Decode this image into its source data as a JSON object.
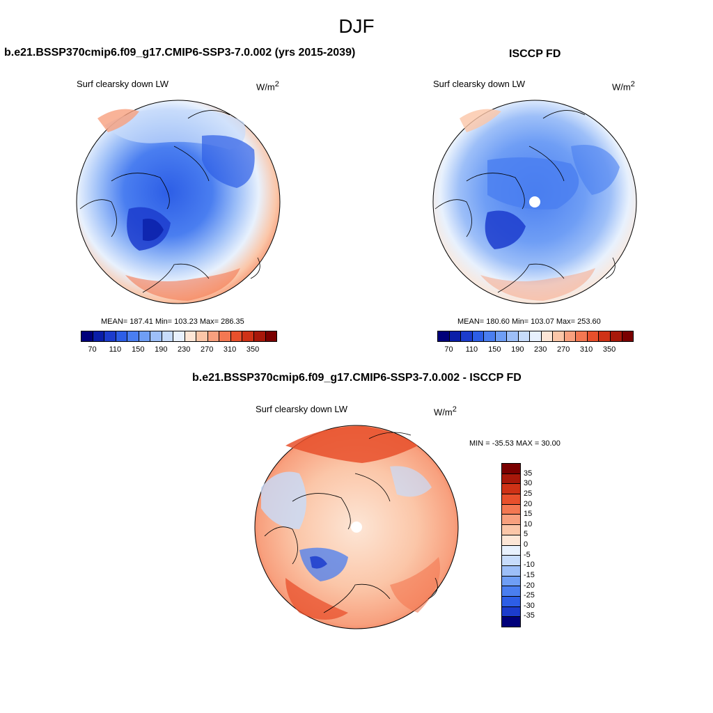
{
  "season": "DJF",
  "panels": [
    {
      "title": "b.e21.BSSP370cmip6.f09_g17.CMIP6-SSP3-7.0.002 (yrs 2015-2039)",
      "variable": "Surf clearsky down LW",
      "units_base": "W/m",
      "units_exp": "2",
      "stats": "MEAN= 187.41  Min= 103.23  Max= 286.35"
    },
    {
      "title": "ISCCP FD",
      "variable": "Surf clearsky down LW",
      "units_base": "W/m",
      "units_exp": "2",
      "stats": "MEAN= 180.60  Min= 103.07  Max= 253.60"
    }
  ],
  "diff_panel": {
    "title": "b.e21.BSSP370cmip6.f09_g17.CMIP6-SSP3-7.0.002 - ISCCP FD",
    "variable": "Surf clearsky down LW",
    "units_base": "W/m",
    "units_exp": "2",
    "stats": "MIN = -35.53 MAX =  30.00"
  },
  "abs_colorbar": {
    "labels": [
      "70",
      "110",
      "150",
      "190",
      "230",
      "270",
      "310",
      "350"
    ],
    "colors": [
      "#00007a",
      "#0a1ea8",
      "#1c3ccc",
      "#2d5ee6",
      "#4a7ef0",
      "#6f9ef5",
      "#9dbff8",
      "#c7dcfb",
      "#e8f1fd",
      "#fde6d6",
      "#fbc6a8",
      "#f8a07e",
      "#f37852",
      "#e8502c",
      "#cf3216",
      "#a8180a",
      "#7a0000"
    ]
  },
  "diff_colorbar": {
    "labels": [
      "35",
      "30",
      "25",
      "20",
      "15",
      "10",
      "5",
      "0",
      "-5",
      "-10",
      "-15",
      "-20",
      "-25",
      "-30",
      "-35"
    ],
    "colors": [
      "#7a0000",
      "#a8180a",
      "#cf3216",
      "#e8502c",
      "#f37852",
      "#f8a07e",
      "#fbc6a8",
      "#fde6d6",
      "#e8f1fd",
      "#c7dcfb",
      "#9dbff8",
      "#6f9ef5",
      "#4a7ef0",
      "#2d5ee6",
      "#1c3ccc",
      "#00007a"
    ]
  }
}
